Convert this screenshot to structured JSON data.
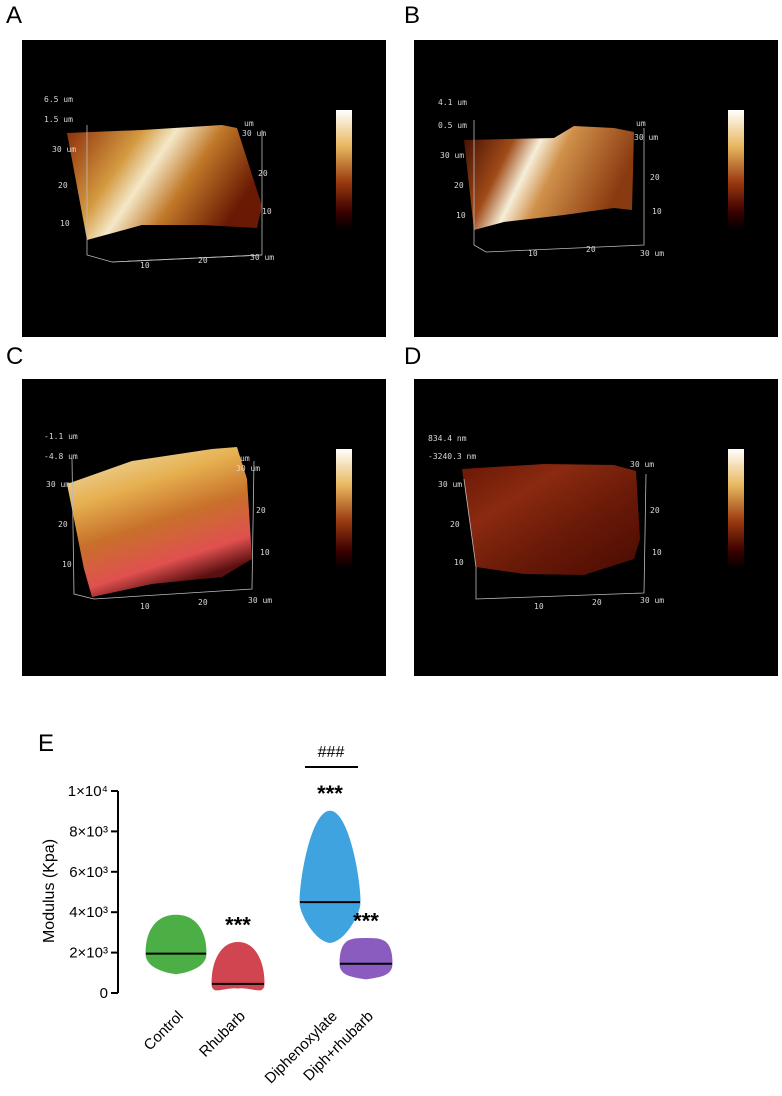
{
  "panels": [
    {
      "letter": "A",
      "z_top": "6.5 um",
      "z_bottom": "1.5 um",
      "unit": "um",
      "y_top": "30 um",
      "y_mid": "20",
      "y_low": "10",
      "x_mid1": "10",
      "x_mid2": "20",
      "x_end": "30 um",
      "r_top": "30 um",
      "r_mid": "20",
      "r_low": "10"
    },
    {
      "letter": "B",
      "z_top": "4.1 um",
      "z_bottom": "0.5 um",
      "unit": "um",
      "y_top": "30 um",
      "y_mid": "20",
      "y_low": "10",
      "x_mid1": "10",
      "x_mid2": "20",
      "x_end": "30 um",
      "r_top": "30 um",
      "r_mid": "20",
      "r_low": "10"
    },
    {
      "letter": "C",
      "z_top": "-1.1 um",
      "z_bottom": "-4.8 um",
      "unit": "um",
      "y_top": "30 um",
      "y_mid": "20",
      "y_low": "10",
      "x_mid1": "10",
      "x_mid2": "20",
      "x_end": "30 um",
      "r_top": "30 um",
      "r_mid": "20",
      "r_low": "10"
    },
    {
      "letter": "D",
      "z_top": "834.4 nm",
      "z_bottom": "-3240.3 nm",
      "unit": "",
      "y_top": "30 um",
      "y_mid": "20",
      "y_low": "10",
      "x_mid1": "10",
      "x_mid2": "20",
      "x_end": "30 um",
      "r_top": "30 um",
      "r_mid": "20",
      "r_low": "10"
    }
  ],
  "figure_e": {
    "letter": "E",
    "significance": {
      "bracket_label": "###",
      "stars": [
        "",
        "***",
        "***",
        "***"
      ]
    },
    "colors": {
      "Control": "#4caf45",
      "Rhubarb": "#d0454f",
      "Diphenoxylate": "#3fa3df",
      "Diph+rhubarb": "#8a5cbf"
    }
  },
  "chart_data": {
    "type": "violin",
    "ylabel": "Modulus (Kpa)",
    "ylim": [
      0,
      10000
    ],
    "yticks": [
      0,
      2000,
      4000,
      6000,
      8000,
      10000
    ],
    "ytick_labels": [
      "0",
      "2×10³",
      "4×10³",
      "6×10³",
      "8×10³",
      "1×10⁴"
    ],
    "categories": [
      "Control",
      "Rhubarb",
      "Diphenoxylate",
      "Diph+rhubarb"
    ],
    "medians": [
      1950,
      450,
      4500,
      1450
    ],
    "ranges": [
      [
        950,
        3850
      ],
      [
        250,
        2500
      ],
      [
        2500,
        9000
      ],
      [
        700,
        2700
      ]
    ]
  }
}
